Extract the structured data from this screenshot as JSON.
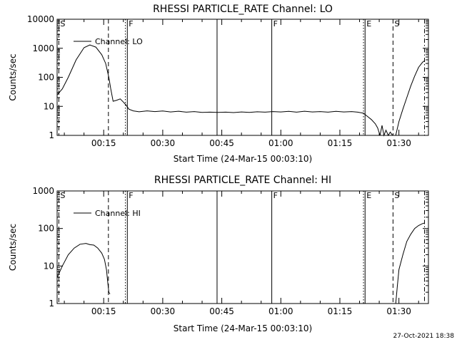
{
  "footer_timestamp": "27-Oct-2021 18:38",
  "chart_data": [
    {
      "type": "line",
      "title": "RHESSI PARTICLE_RATE Channel: LO",
      "xlabel": "Start Time (24-Mar-15 00:03:10)",
      "ylabel": "Counts/sec",
      "yscale": "log",
      "ylim": [
        1,
        10000
      ],
      "xlim_minutes": [
        3.17,
        97.5
      ],
      "x_ticks": [
        "00:15",
        "00:30",
        "00:45",
        "01:00",
        "01:15",
        "01:30"
      ],
      "y_ticks": [
        "1",
        "10",
        "100",
        "1000",
        "10000"
      ],
      "legend": "Channel: LO",
      "legend_position": "top-left",
      "markers": [
        {
          "label": "S",
          "minute": 3.6,
          "style": "dashed"
        },
        {
          "label": "",
          "minute": 16.2,
          "style": "dashed"
        },
        {
          "label": "",
          "minute": 20.5,
          "style": "dotted"
        },
        {
          "label": "F",
          "minute": 21.0,
          "style": "solid"
        },
        {
          "label": "",
          "minute": 43.8,
          "style": "solid"
        },
        {
          "label": "F",
          "minute": 57.7,
          "style": "solid"
        },
        {
          "label": "",
          "minute": 81.0,
          "style": "dotted"
        },
        {
          "label": "E",
          "minute": 81.4,
          "style": "solid"
        },
        {
          "label": "S",
          "minute": 88.5,
          "style": "dashed"
        },
        {
          "label": "",
          "minute": 96.5,
          "style": "dashdot"
        }
      ],
      "series": [
        {
          "segments": [
            [
              [
                3.2,
                25
              ],
              [
                4.5,
                40
              ],
              [
                6,
                100
              ],
              [
                8,
                400
              ],
              [
                10,
                1050
              ],
              [
                11.5,
                1300
              ],
              [
                13,
                1100
              ],
              [
                14.5,
                600
              ],
              [
                15.5,
                300
              ],
              [
                16.3,
                100
              ],
              [
                16.8,
                40
              ],
              [
                17.4,
                15
              ],
              [
                18.2,
                16
              ],
              [
                19.2,
                18
              ],
              [
                20,
                14
              ],
              [
                20.7,
                11
              ],
              [
                21.4,
                8
              ],
              [
                22.5,
                7
              ],
              [
                24,
                6.5
              ],
              [
                26,
                7
              ],
              [
                28,
                6.6
              ],
              [
                30,
                6.9
              ],
              [
                32,
                6.4
              ],
              [
                34,
                6.8
              ],
              [
                36,
                6.3
              ],
              [
                38,
                6.6
              ],
              [
                40,
                6.2
              ],
              [
                42,
                6.3
              ],
              [
                44,
                6.2
              ],
              [
                46,
                6.3
              ],
              [
                48,
                6.1
              ],
              [
                50,
                6.4
              ],
              [
                52,
                6.2
              ],
              [
                54,
                6.5
              ],
              [
                56,
                6.3
              ],
              [
                58,
                6.6
              ],
              [
                60,
                6.4
              ],
              [
                62,
                6.7
              ],
              [
                64,
                6.3
              ],
              [
                66,
                6.8
              ],
              [
                68,
                6.4
              ],
              [
                70,
                6.6
              ],
              [
                72,
                6.3
              ],
              [
                74,
                6.7
              ],
              [
                76,
                6.4
              ],
              [
                78,
                6.6
              ],
              [
                79.5,
                6.3
              ],
              [
                81,
                5.8
              ],
              [
                82,
                4.5
              ],
              [
                83,
                3.5
              ],
              [
                84,
                2.5
              ],
              [
                84.6,
                1.8
              ],
              [
                85.2,
                1
              ],
              [
                85.7,
                2.2
              ],
              [
                86.2,
                1
              ],
              [
                86.7,
                1.5
              ],
              [
                87.3,
                1
              ],
              [
                87.8,
                1.3
              ],
              [
                88.4,
                1
              ],
              [
                88.9,
                1
              ]
            ],
            [
              [
                89.2,
                1
              ],
              [
                90,
                3
              ],
              [
                91,
                8
              ],
              [
                92,
                20
              ],
              [
                93,
                50
              ],
              [
                94,
                110
              ],
              [
                95,
                220
              ],
              [
                96,
                330
              ],
              [
                96.6,
                380
              ]
            ]
          ]
        }
      ]
    },
    {
      "type": "line",
      "title": "RHESSI PARTICLE_RATE Channel: HI",
      "xlabel": "Start Time (24-Mar-15 00:03:10)",
      "ylabel": "Counts/sec",
      "yscale": "log",
      "ylim": [
        1,
        1000
      ],
      "xlim_minutes": [
        3.17,
        97.5
      ],
      "x_ticks": [
        "00:15",
        "00:30",
        "00:45",
        "01:00",
        "01:15",
        "01:30"
      ],
      "y_ticks": [
        "1",
        "10",
        "100",
        "1000"
      ],
      "legend": "Channel: HI",
      "legend_position": "top-left",
      "markers": [
        {
          "label": "S",
          "minute": 3.6,
          "style": "dashed"
        },
        {
          "label": "",
          "minute": 16.2,
          "style": "dashed"
        },
        {
          "label": "",
          "minute": 20.5,
          "style": "dotted"
        },
        {
          "label": "F",
          "minute": 21.0,
          "style": "solid"
        },
        {
          "label": "",
          "minute": 43.8,
          "style": "solid"
        },
        {
          "label": "F",
          "minute": 57.7,
          "style": "solid"
        },
        {
          "label": "",
          "minute": 81.0,
          "style": "dotted"
        },
        {
          "label": "E",
          "minute": 81.4,
          "style": "solid"
        },
        {
          "label": "S",
          "minute": 88.5,
          "style": "dashed"
        },
        {
          "label": "",
          "minute": 96.5,
          "style": "dashdot"
        }
      ],
      "series": [
        {
          "segments": [
            [
              [
                3.2,
                5
              ],
              [
                4.5,
                10
              ],
              [
                6,
                20
              ],
              [
                7.5,
                30
              ],
              [
                9,
                38
              ],
              [
                10.5,
                40
              ],
              [
                11.5,
                37
              ],
              [
                12.5,
                36
              ],
              [
                13.5,
                30
              ],
              [
                14.5,
                22
              ],
              [
                15.2,
                15
              ],
              [
                15.7,
                8
              ],
              [
                16,
                4
              ],
              [
                16.3,
                2
              ],
              [
                16.6,
                1.8
              ]
            ],
            [
              [
                89.2,
                1
              ],
              [
                89.6,
                3
              ],
              [
                90,
                8
              ],
              [
                91,
                20
              ],
              [
                92,
                45
              ],
              [
                93,
                70
              ],
              [
                94,
                100
              ],
              [
                95,
                120
              ],
              [
                96,
                135
              ],
              [
                96.6,
                140
              ]
            ]
          ]
        }
      ]
    }
  ]
}
